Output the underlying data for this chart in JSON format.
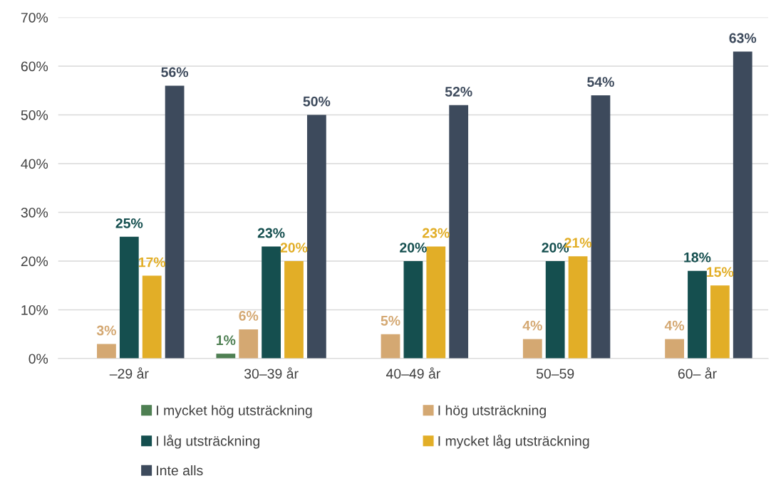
{
  "chart_data": {
    "type": "bar",
    "categories": [
      "–29 år",
      "30–39 år",
      "40–49 år",
      "50–59",
      "60– år"
    ],
    "series": [
      {
        "name": "I mycket hög utsträckning",
        "color": "#4e7f52",
        "values": [
          null,
          1,
          null,
          null,
          null
        ],
        "value_labels": [
          null,
          "1%",
          null,
          null,
          null
        ]
      },
      {
        "name": "I hög utsträckning",
        "color": "#d4a872",
        "values": [
          3,
          6,
          5,
          4,
          4
        ],
        "value_labels": [
          "3%",
          "6%",
          "5%",
          "4%",
          "4%"
        ]
      },
      {
        "name": "I låg utsträckning",
        "color": "#154f4f",
        "values": [
          25,
          23,
          20,
          20,
          18
        ],
        "value_labels": [
          "25%",
          "23%",
          "20%",
          "20%",
          "18%"
        ]
      },
      {
        "name": "I mycket låg utsträckning",
        "color": "#e2ae27",
        "values": [
          17,
          20,
          23,
          21,
          15
        ],
        "value_labels": [
          "17%",
          "20%",
          "23%",
          "21%",
          "15%"
        ]
      },
      {
        "name": "Inte alls",
        "color": "#3d4a5c",
        "values": [
          56,
          50,
          52,
          54,
          63
        ],
        "value_labels": [
          "56%",
          "50%",
          "52%",
          "54%",
          "63%"
        ]
      }
    ],
    "ylim": [
      0,
      70
    ],
    "yticks": [
      {
        "value": 0,
        "label": "0%"
      },
      {
        "value": 10,
        "label": "10%"
      },
      {
        "value": 20,
        "label": "20%"
      },
      {
        "value": 30,
        "label": "30%"
      },
      {
        "value": 40,
        "label": "40%"
      },
      {
        "value": 50,
        "label": "50%"
      },
      {
        "value": 60,
        "label": "60%"
      },
      {
        "value": 70,
        "label": "70%"
      }
    ],
    "grid": "y",
    "legend": "bottom"
  }
}
